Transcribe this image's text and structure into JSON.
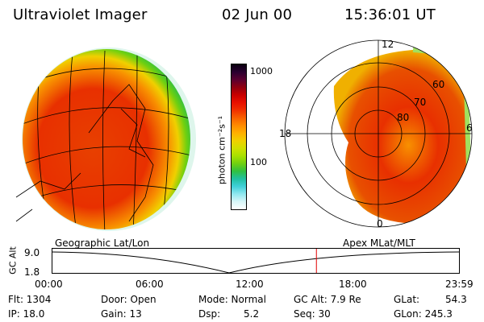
{
  "header": {
    "instrument": "Ultraviolet Imager",
    "date": "02 Jun 00",
    "time": "15:36:01 UT"
  },
  "left_panel": {
    "caption": "Geographic Lat/Lon"
  },
  "right_panel": {
    "caption": "Apex MLat/MLT",
    "mlt_labels": {
      "top": "12",
      "left": "18",
      "right": "6",
      "bottom": "0"
    },
    "lat_labels": [
      "60",
      "70",
      "80"
    ]
  },
  "colorbar": {
    "unit_label": "photon cm⁻²s⁻¹",
    "tick_1000": "1000",
    "tick_100": "100",
    "colors": [
      "#0a0010",
      "#2a0030",
      "#5a0030",
      "#900010",
      "#c80000",
      "#e81000",
      "#f03000",
      "#f86000",
      "#ff8a00",
      "#ffb000",
      "#f0d000",
      "#d0e000",
      "#a8e000",
      "#70d010",
      "#30c040",
      "#20c0a0",
      "#40d0d8",
      "#90e8f0",
      "#d8f6f8",
      "#ffffff"
    ]
  },
  "altitude_plot": {
    "y_label": "GC Alt",
    "y_ticks": [
      "9.0",
      "1.8"
    ],
    "x_ticks": [
      "00:00",
      "06:00",
      "12:00",
      "18:00",
      "23:59"
    ],
    "marker_time": "15:36",
    "marker_color": "#e00000"
  },
  "info": {
    "flt": "Flt: 1304",
    "ip": "IP: 18.0",
    "door": "Door: Open",
    "gain": "Gain: 13",
    "mode": "Mode: Normal",
    "dsp": "Dsp:",
    "dsp_val": "5.2",
    "gcalt": "GC Alt: 7.9 Re",
    "seq": "Seq: 30",
    "glat": "GLat:",
    "glat_val": "54.3",
    "glon": "GLon: 245.3"
  }
}
